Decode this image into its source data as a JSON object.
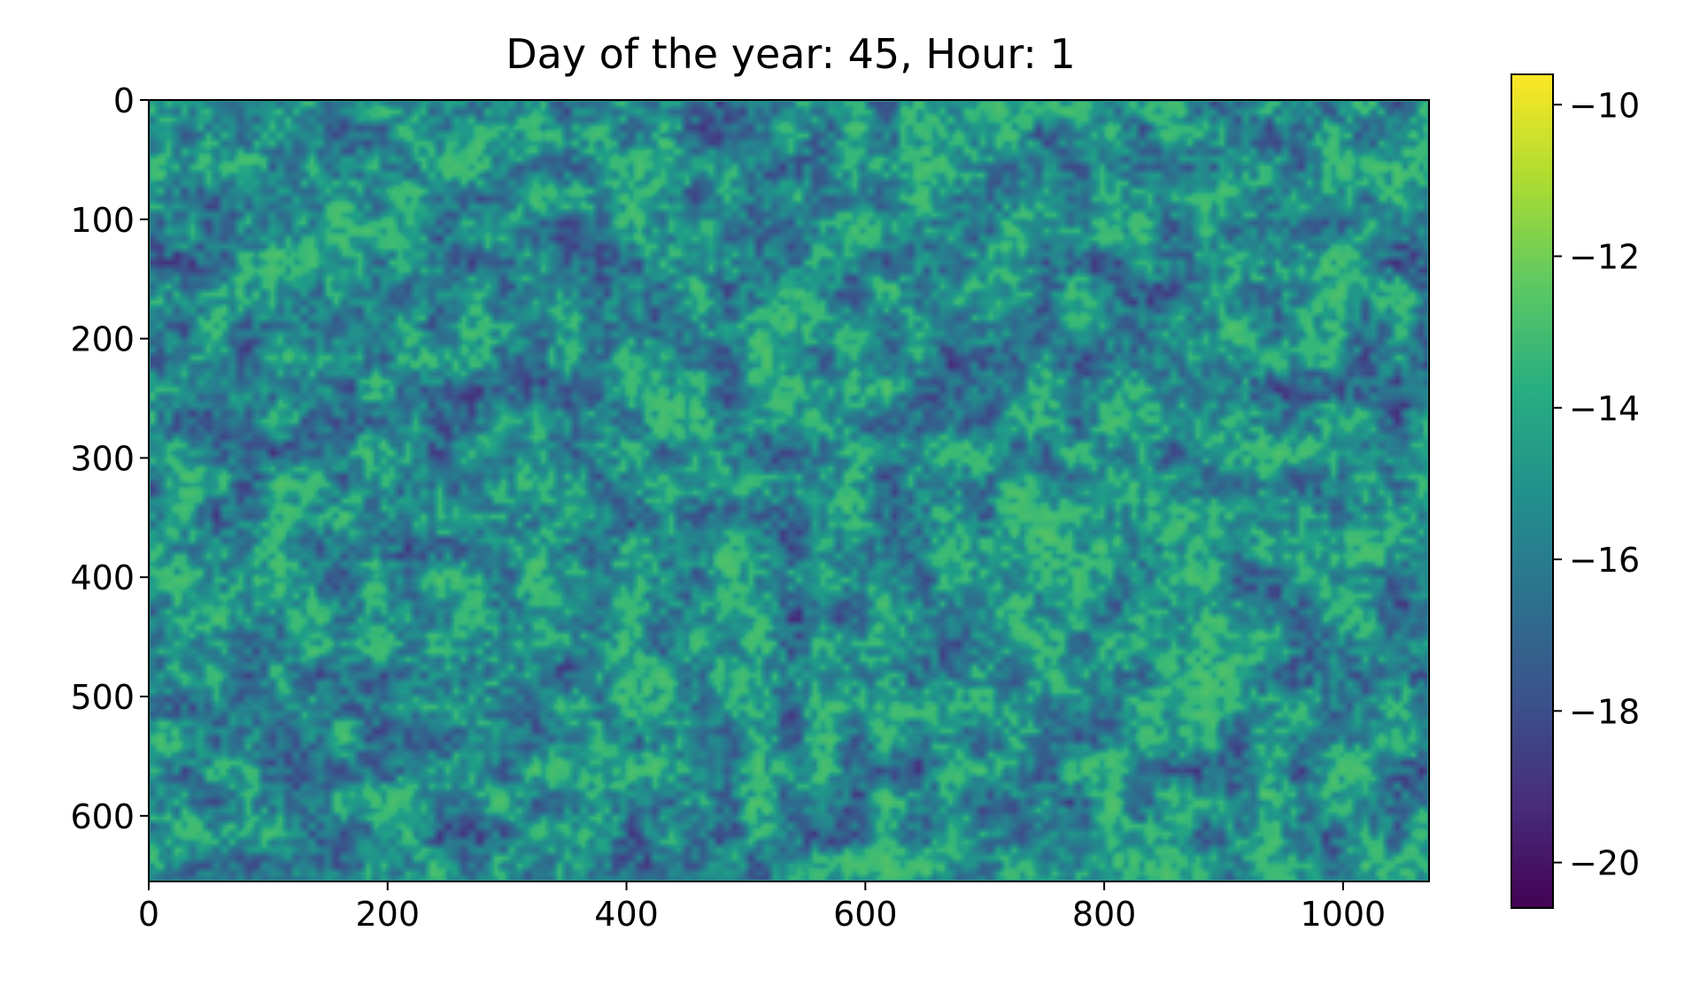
{
  "chart_data": {
    "type": "heatmap",
    "title": "Day of the year: 45, Hour: 1",
    "xlabel": "",
    "ylabel": "",
    "image_width": 1072,
    "image_height": 655,
    "xlim": [
      0,
      1072
    ],
    "ylim": [
      655,
      0
    ],
    "x_ticks": [
      0,
      200,
      400,
      600,
      800,
      1000
    ],
    "x_tick_labels": [
      "0",
      "200",
      "400",
      "600",
      "800",
      "1000"
    ],
    "y_ticks": [
      0,
      100,
      200,
      300,
      400,
      500,
      600
    ],
    "y_tick_labels": [
      "0",
      "100",
      "200",
      "300",
      "400",
      "500",
      "600"
    ],
    "colormap": "viridis",
    "colorbar": {
      "vmin": -20.6,
      "vmax": -9.6,
      "ticks": [
        -10,
        -12,
        -14,
        -16,
        -18,
        -20
      ],
      "tick_labels": [
        "−10",
        "−12",
        "−14",
        "−16",
        "−18",
        "−20"
      ]
    },
    "grid": false,
    "legend": "none"
  }
}
